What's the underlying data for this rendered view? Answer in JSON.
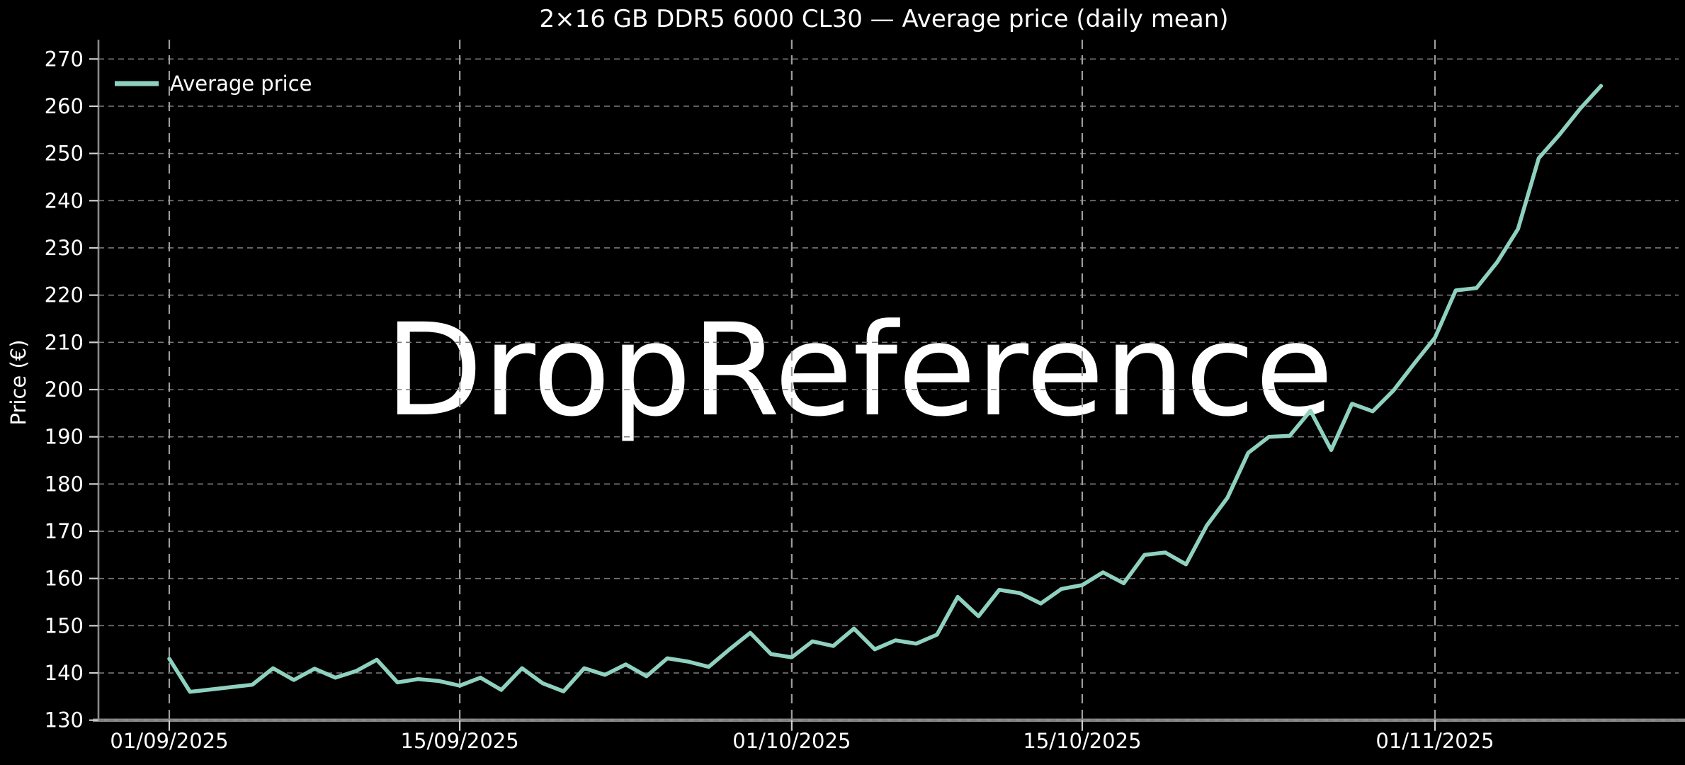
{
  "figure": {
    "background": "#000000"
  },
  "chart_data": {
    "type": "line",
    "title": "2×16 GB DDR5 6000 CL30 — Average price (daily mean)",
    "ylabel": "Price (€)",
    "xlabel": "",
    "watermark": "DropReference",
    "grid": true,
    "legend_position": "upper left",
    "ylim": [
      130,
      270
    ],
    "yticks": [
      130,
      140,
      150,
      160,
      170,
      180,
      190,
      200,
      210,
      220,
      230,
      240,
      250,
      260,
      270
    ],
    "xticks": [
      {
        "label": "01/09/2025",
        "day": 0
      },
      {
        "label": "15/09/2025",
        "day": 14
      },
      {
        "label": "01/10/2025",
        "day": 30
      },
      {
        "label": "15/10/2025",
        "day": 44
      },
      {
        "label": "01/11/2025",
        "day": 61
      }
    ],
    "colors": {
      "background": "#000000",
      "grid_horizontal": "#787878",
      "grid_vertical": "#9d9d9d",
      "spine": "#8a8a8a",
      "tick_mark": "#cfcfcf",
      "text": "#ffffff",
      "watermark": "#1a1a1a",
      "line": "#8fd1bf"
    },
    "series": [
      {
        "name": "Average price",
        "color": "#8fd1bf",
        "dates": [
          "01/09/2025",
          "02/09/2025",
          "03/09/2025",
          "04/09/2025",
          "05/09/2025",
          "06/09/2025",
          "07/09/2025",
          "08/09/2025",
          "09/09/2025",
          "10/09/2025",
          "11/09/2025",
          "12/09/2025",
          "13/09/2025",
          "14/09/2025",
          "15/09/2025",
          "16/09/2025",
          "17/09/2025",
          "18/09/2025",
          "19/09/2025",
          "20/09/2025",
          "21/09/2025",
          "22/09/2025",
          "23/09/2025",
          "24/09/2025",
          "25/09/2025",
          "26/09/2025",
          "27/09/2025",
          "28/09/2025",
          "29/09/2025",
          "30/09/2025",
          "01/10/2025",
          "02/10/2025",
          "03/10/2025",
          "04/10/2025",
          "05/10/2025",
          "06/10/2025",
          "07/10/2025",
          "08/10/2025",
          "09/10/2025",
          "10/10/2025",
          "11/10/2025",
          "12/10/2025",
          "13/10/2025",
          "14/10/2025",
          "15/10/2025",
          "16/10/2025",
          "17/10/2025",
          "18/10/2025",
          "19/10/2025",
          "20/10/2025",
          "21/10/2025",
          "22/10/2025",
          "23/10/2025",
          "24/10/2025",
          "25/10/2025",
          "26/10/2025",
          "27/10/2025",
          "28/10/2025",
          "29/10/2025",
          "30/10/2025",
          "31/10/2025",
          "01/11/2025",
          "02/11/2025",
          "03/11/2025",
          "04/11/2025",
          "05/11/2025",
          "06/11/2025",
          "07/11/2025",
          "08/11/2025",
          "09/11/2025"
        ],
        "values": [
          143.0,
          136.0,
          136.5,
          137.0,
          137.5,
          141.0,
          138.5,
          140.9,
          139.0,
          140.4,
          142.8,
          138.0,
          138.7,
          138.3,
          137.3,
          139.0,
          136.4,
          141.0,
          137.8,
          136.1,
          141.0,
          139.6,
          141.8,
          139.3,
          143.1,
          142.4,
          141.3,
          145.0,
          148.5,
          144.0,
          143.3,
          146.7,
          145.7,
          149.4,
          145.0,
          146.9,
          146.2,
          148.1,
          156.1,
          152.0,
          157.6,
          156.9,
          154.7,
          157.8,
          158.6,
          161.3,
          159.0,
          165.0,
          165.5,
          163.0,
          171.2,
          177.1,
          186.6,
          190.0,
          190.2,
          195.5,
          187.2,
          197.0,
          195.4,
          199.8,
          205.5,
          211.0,
          221.0,
          221.5,
          227.0,
          234.0,
          249.0,
          254.0,
          259.5,
          264.3
        ]
      }
    ]
  }
}
